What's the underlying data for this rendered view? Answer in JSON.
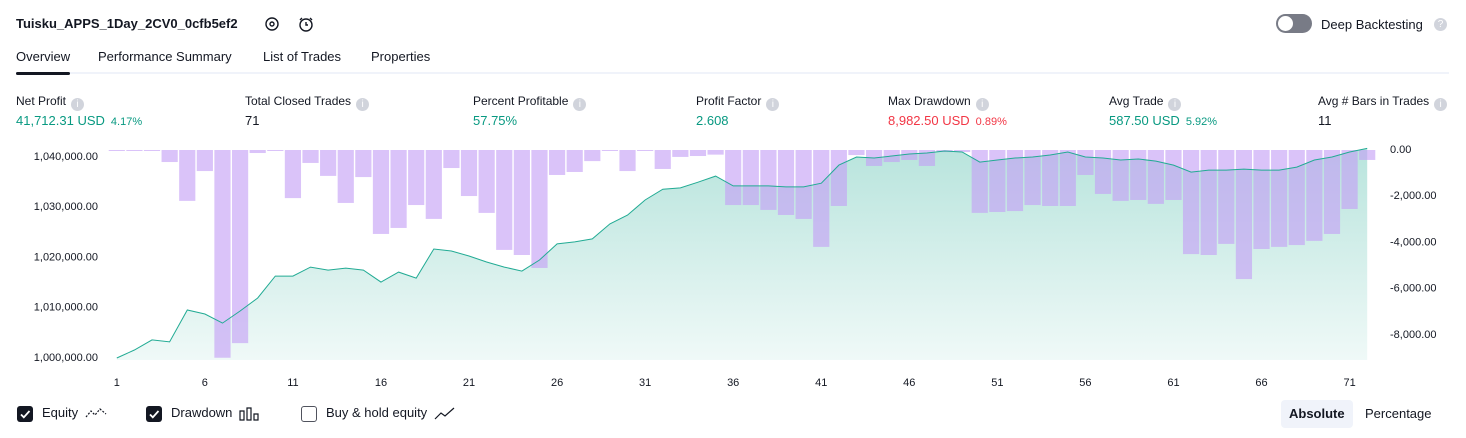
{
  "header": {
    "title": "Tuisku_APPS_1Day_2CV0_0cfb5ef2",
    "toggle_label": "Deep Backtesting",
    "toggle_on": false
  },
  "tabs": [
    "Overview",
    "Performance Summary",
    "List of Trades",
    "Properties"
  ],
  "active_tab": 0,
  "metrics": [
    {
      "label": "Net Profit",
      "value": "41,712.31 USD",
      "change": "4.17%",
      "color": "#089981"
    },
    {
      "label": "Total Closed Trades",
      "value": "71",
      "color": "#131722"
    },
    {
      "label": "Percent Profitable",
      "value": "57.75%",
      "color": "#089981"
    },
    {
      "label": "Profit Factor",
      "value": "2.608",
      "color": "#089981"
    },
    {
      "label": "Max Drawdown",
      "value": "8,982.50 USD",
      "change": "0.89%",
      "color": "#f23645"
    },
    {
      "label": "Avg Trade",
      "value": "587.50 USD",
      "change": "5.92%",
      "color": "#089981"
    },
    {
      "label": "Avg # Bars in Trades",
      "value": "11",
      "color": "#131722"
    }
  ],
  "chart_data": {
    "type": "equity-drawdown",
    "x": [
      1,
      2,
      3,
      4,
      5,
      6,
      7,
      8,
      9,
      10,
      11,
      12,
      13,
      14,
      15,
      16,
      17,
      18,
      19,
      20,
      21,
      22,
      23,
      24,
      25,
      26,
      27,
      28,
      29,
      30,
      31,
      32,
      33,
      34,
      35,
      36,
      37,
      38,
      39,
      40,
      41,
      42,
      43,
      44,
      45,
      46,
      47,
      48,
      49,
      50,
      51,
      52,
      53,
      54,
      55,
      56,
      57,
      58,
      59,
      60,
      61,
      62,
      63,
      64,
      65,
      66,
      67,
      68,
      69,
      70,
      71,
      72
    ],
    "series": [
      {
        "name": "Equity",
        "color": "#22ab94",
        "axis": "y",
        "values": [
          1000000,
          1001600,
          1003600,
          1003200,
          1009550,
          1008750,
          1006950,
          1009350,
          1011950,
          1016300,
          1016300,
          1018100,
          1017500,
          1017900,
          1017500,
          1015100,
          1017100,
          1015900,
          1021700,
          1021300,
          1020300,
          1019100,
          1018100,
          1017300,
          1019500,
          1022700,
          1023100,
          1023700,
          1026700,
          1028450,
          1031450,
          1033600,
          1033850,
          1035000,
          1036200,
          1034250,
          1034250,
          1034250,
          1034050,
          1034050,
          1034800,
          1038400,
          1040000,
          1039800,
          1040200,
          1040600,
          1040800,
          1041200,
          1041000,
          1039000,
          1039400,
          1039800,
          1040000,
          1040400,
          1041000,
          1040000,
          1039800,
          1039400,
          1039600,
          1039200,
          1038400,
          1037000,
          1037400,
          1037400,
          1037600,
          1037400,
          1037400,
          1038000,
          1039400,
          1040000,
          1041000,
          1041712
        ]
      },
      {
        "name": "Drawdown",
        "color": "#c39ef5",
        "axis": "y2",
        "values": [
          0,
          0,
          0,
          -520,
          -2200,
          -910,
          -8982.5,
          -8350,
          -130,
          0,
          -2080,
          -560,
          -1120,
          -2290,
          -1170,
          -3630,
          -3370,
          -2380,
          -2980,
          -780,
          -1990,
          -2720,
          -4320,
          -4540,
          -5100,
          -1080,
          -950,
          -480,
          0,
          -910,
          0,
          -820,
          -300,
          -260,
          -200,
          -2380,
          -2380,
          -2590,
          -2810,
          -2980,
          -4190,
          -2420,
          -220,
          -690,
          -520,
          -430,
          -690,
          -90,
          -90,
          -2720,
          -2680,
          -2640,
          -2380,
          -2420,
          -2420,
          -1080,
          -1900,
          -2200,
          -2160,
          -2330,
          -2160,
          -4500,
          -4540,
          -4060,
          -5580,
          -4280,
          -4190,
          -4110,
          -3930,
          -3630,
          -2550,
          -430
        ]
      }
    ],
    "xlim": [
      0.5,
      72.5
    ],
    "xticks": [
      1,
      6,
      11,
      16,
      21,
      26,
      31,
      36,
      41,
      46,
      51,
      56,
      61,
      66,
      71
    ],
    "ylim": [
      999600,
      1041400
    ],
    "yticks": [
      {
        "value": 1000000,
        "label": "1,000,000.00"
      },
      {
        "value": 1010000,
        "label": "1,010,000.00"
      },
      {
        "value": 1020000,
        "label": "1,020,000.00"
      },
      {
        "value": 1030000,
        "label": "1,030,000.00"
      },
      {
        "value": 1040000,
        "label": "1,040,000.00"
      }
    ],
    "y2lim": [
      -9080,
      0
    ],
    "y2ticks": [
      {
        "value": 0,
        "label": "0.00"
      },
      {
        "value": -2000,
        "label": "-2,000.00"
      },
      {
        "value": -4000,
        "label": "-4,000.00"
      },
      {
        "value": -6000,
        "label": "-6,000.00"
      },
      {
        "value": -8000,
        "label": "-8,000.00"
      }
    ]
  },
  "legend": [
    {
      "label": "Equity",
      "checked": true
    },
    {
      "label": "Drawdown",
      "checked": true
    },
    {
      "label": "Buy & hold equity",
      "checked": false
    }
  ],
  "scale_buttons": [
    "Absolute",
    "Percentage"
  ],
  "active_scale": 0
}
